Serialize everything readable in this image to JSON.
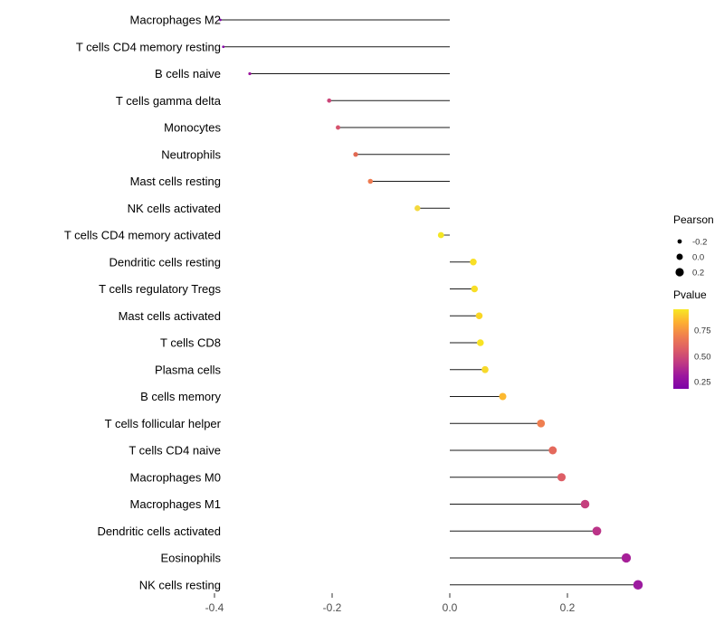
{
  "chart_data": {
    "type": "lollipop",
    "title": "",
    "xlabel": "",
    "ylabel": "",
    "grid": false,
    "xlim": [
      -0.45,
      0.37
    ],
    "x_ticks": [
      "-0.4",
      "-0.2",
      "0.0",
      "0.2"
    ],
    "x_tick_values": [
      -0.4,
      -0.2,
      0.0,
      0.2
    ],
    "points": [
      {
        "label": "Macrophages M2",
        "pearson": -0.39,
        "color": "#7e03a8"
      },
      {
        "label": "T cells CD4 memory resting",
        "pearson": -0.385,
        "color": "#8606a6"
      },
      {
        "label": "B cells naive",
        "pearson": -0.34,
        "color": "#9c179e"
      },
      {
        "label": "T cells gamma delta",
        "pearson": -0.205,
        "color": "#cb4679"
      },
      {
        "label": "Monocytes",
        "pearson": -0.19,
        "color": "#d5546e"
      },
      {
        "label": "Neutrophils",
        "pearson": -0.16,
        "color": "#e26952"
      },
      {
        "label": "Mast cells resting",
        "pearson": -0.135,
        "color": "#ee7b51"
      },
      {
        "label": "NK cells activated",
        "pearson": -0.055,
        "color": "#f4d93e"
      },
      {
        "label": "T cells CD4 memory activated",
        "pearson": -0.015,
        "color": "#f4e624"
      },
      {
        "label": "Dendritic cells resting",
        "pearson": 0.04,
        "color": "#f8df25"
      },
      {
        "label": "T cells regulatory  Tregs",
        "pearson": 0.042,
        "color": "#f8de26"
      },
      {
        "label": "Mast cells activated",
        "pearson": 0.05,
        "color": "#f9d624"
      },
      {
        "label": "T cells CD8",
        "pearson": 0.052,
        "color": "#f8e323"
      },
      {
        "label": "Plasma cells",
        "pearson": 0.06,
        "color": "#f7d92a"
      },
      {
        "label": "B cells memory",
        "pearson": 0.09,
        "color": "#fcb82f"
      },
      {
        "label": "T cells follicular helper",
        "pearson": 0.155,
        "color": "#ef7e50"
      },
      {
        "label": "T cells CD4 naive",
        "pearson": 0.175,
        "color": "#e4695c"
      },
      {
        "label": "Macrophages M0",
        "pearson": 0.19,
        "color": "#dd5e66"
      },
      {
        "label": "Macrophages M1",
        "pearson": 0.23,
        "color": "#c5407e"
      },
      {
        "label": "Dendritic cells activated",
        "pearson": 0.25,
        "color": "#bb3488"
      },
      {
        "label": "Eosinophils",
        "pearson": 0.3,
        "color": "#a62098"
      },
      {
        "label": "NK cells resting",
        "pearson": 0.32,
        "color": "#9c1b9f"
      }
    ],
    "legend": {
      "size_title": "Pearson",
      "size_ticks": [
        {
          "label": "-0.2",
          "value": -0.2
        },
        {
          "label": "0.0",
          "value": 0.0
        },
        {
          "label": "0.2",
          "value": 0.2
        }
      ],
      "color_title": "Pvalue",
      "color_ticks": [
        {
          "label": "0.75"
        },
        {
          "label": "0.50"
        },
        {
          "label": "0.25"
        }
      ],
      "gradient_top_to_bottom": [
        "#f7e825",
        "#fdae32",
        "#f0804e",
        "#dd5e66",
        "#c13b82",
        "#9c179e",
        "#7d03a8"
      ]
    },
    "colors": {
      "stem": "#1a1a1a",
      "label_text": "#000000",
      "tick_text": "#4d4d4d",
      "legend_dot": "#000000"
    }
  }
}
